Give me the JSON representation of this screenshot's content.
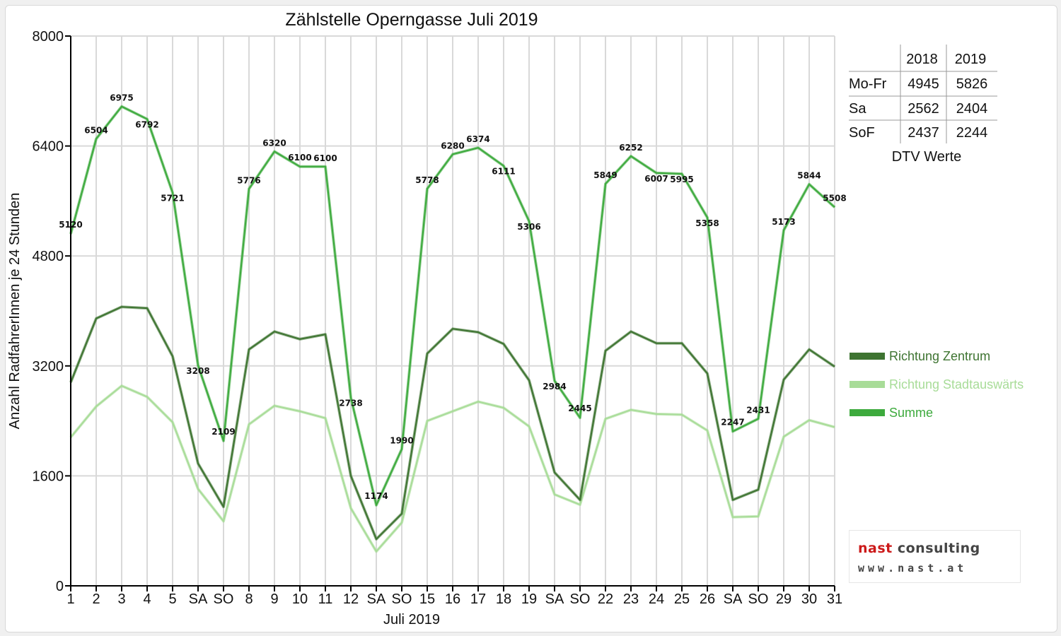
{
  "colors": {
    "zentrum": "#3e7431",
    "stadtauswaerts": "#a8dc98",
    "summe": "#3daa3d",
    "weekend_red": "#dd0000",
    "grid": "#d9d9d9"
  },
  "chart_data": {
    "type": "line",
    "title": "Zählstelle Operngasse Juli 2019",
    "xlabel": "Juli 2019",
    "ylabel": "Anzahl RadfahrerInnen je 24 Stunden",
    "ylim": [
      0,
      8000
    ],
    "yticks": [
      0,
      1600,
      3200,
      4800,
      6400,
      8000
    ],
    "grid": true,
    "legend_position": "right",
    "x": [
      1,
      2,
      3,
      4,
      5,
      6,
      7,
      8,
      9,
      10,
      11,
      12,
      13,
      14,
      15,
      16,
      17,
      18,
      19,
      20,
      21,
      22,
      23,
      24,
      25,
      26,
      27,
      28,
      29,
      30,
      31
    ],
    "categories": [
      "1",
      "2",
      "3",
      "4",
      "5",
      "SA",
      "SO",
      "8",
      "9",
      "10",
      "11",
      "12",
      "SA",
      "SO",
      "15",
      "16",
      "17",
      "18",
      "19",
      "SA",
      "SO",
      "22",
      "23",
      "24",
      "25",
      "26",
      "SA",
      "SO",
      "29",
      "30",
      "31"
    ],
    "weekend_categories": [
      "SO"
    ],
    "series": [
      {
        "name": "Richtung Zentrum",
        "values": [
          2960,
          3890,
          4060,
          4040,
          3340,
          1780,
          1150,
          3440,
          3700,
          3590,
          3660,
          1600,
          680,
          1050,
          3380,
          3740,
          3690,
          3520,
          2990,
          1650,
          1250,
          3420,
          3700,
          3530,
          3530,
          3090,
          1250,
          1400,
          3000,
          3440,
          3190
        ]
      },
      {
        "name": "Richtung Stadtauswärts",
        "values": [
          2160,
          2610,
          2910,
          2750,
          2380,
          1410,
          940,
          2350,
          2620,
          2540,
          2440,
          1130,
          500,
          920,
          2400,
          2540,
          2680,
          2590,
          2320,
          1330,
          1180,
          2430,
          2560,
          2500,
          2490,
          2260,
          1000,
          1010,
          2170,
          2410,
          2310
        ]
      },
      {
        "name": "Summe",
        "values": [
          5120,
          6504,
          6975,
          6792,
          5721,
          3208,
          2109,
          5776,
          6320,
          6100,
          6100,
          2738,
          1174,
          1990,
          5778,
          6280,
          6374,
          6111,
          5306,
          2984,
          2445,
          5849,
          6252,
          6007,
          5995,
          5358,
          2247,
          2431,
          5173,
          5844,
          5508
        ],
        "labels": [
          "5120",
          "6504",
          "6975",
          "6792",
          "5721",
          "3208",
          "2109",
          "5776",
          "6320",
          "6100",
          "6100",
          "2738",
          "1174",
          "1990",
          "5778",
          "6280",
          "6374",
          "6111",
          "5306",
          "2984",
          "2445",
          "5849",
          "6252",
          "6007",
          "5995",
          "5358",
          "2247",
          "2431",
          "5173",
          "5844",
          "5508"
        ]
      }
    ]
  },
  "dtv_table": {
    "caption": "DTV Werte",
    "columns": [
      "2018",
      "2019"
    ],
    "rows": [
      {
        "label": "Mo-Fr",
        "values": [
          "4945",
          "5826"
        ]
      },
      {
        "label": "Sa",
        "values": [
          "2562",
          "2404"
        ]
      },
      {
        "label": "SoF",
        "values": [
          "2437",
          "2244"
        ]
      }
    ]
  },
  "logo": {
    "brand_part1": "nast",
    "brand_part2": " consulting",
    "url": "www.nast.at"
  }
}
